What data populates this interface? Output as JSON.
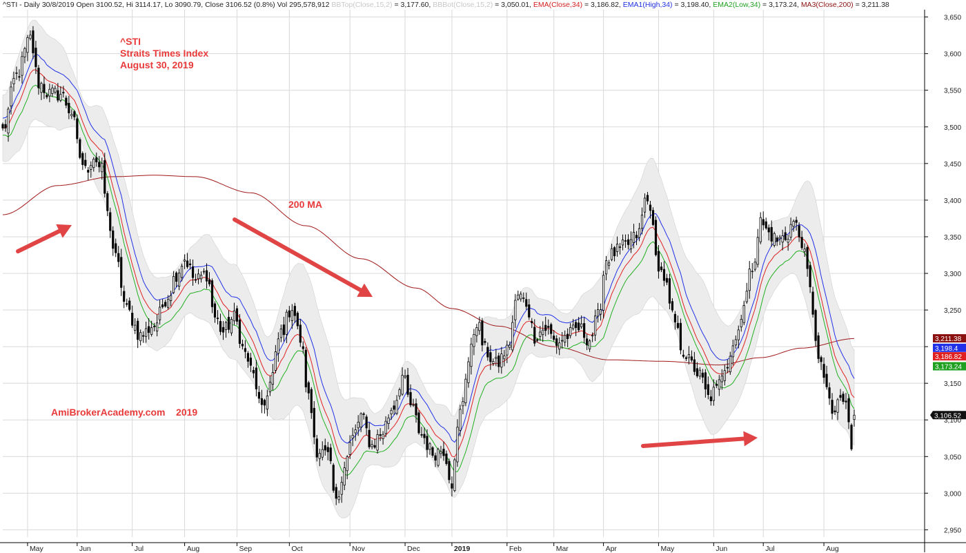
{
  "header": {
    "symbol_line": "^STI - Daily 30/8/2019 Open 3100.52, Hi 3114.17, Lo 3090.79, Close 3106.52 (0.8%) Vol 295,578,912 ",
    "bbtop_label": "BBTop(Close,15,2)",
    "bbtop_value": " = 3,177.60, ",
    "bbbot_label": "BBBot(Close,15,2)",
    "bbbot_value": " = 3,050.01, ",
    "ema_label": "EMA(Close,34)",
    "ema_value": " = 3,186.82, ",
    "ema1_label": "EMA1(High,34)",
    "ema1_value": " = 3,198.40, ",
    "ema2_label": "EMA2(Low,34)",
    "ema2_value": " = 3,173.24, ",
    "ma3_label": "MA3(Close,200)",
    "ma3_value": " = 3,211.38"
  },
  "annotations": {
    "title_line1": "^STI",
    "title_line2": "Straits Times Index",
    "title_line3": "August 30, 2019",
    "ma_label": "200 MA",
    "watermark": "AmiBrokerAcademy.com    2019"
  },
  "colors": {
    "candle": "#000000",
    "band_fill": "#ececec",
    "ema_close": "#e02020",
    "ema_high": "#2030e8",
    "ema_low": "#20b020",
    "ma200": "#a01818",
    "arrow": "#e04444",
    "grid": "#d8d8d8"
  },
  "chart_data": {
    "type": "candlestick",
    "ylim": [
      2940,
      3660
    ],
    "y_ticks": [
      "3,650",
      "3,600",
      "3,550",
      "3,500",
      "3,450",
      "3,400",
      "3,350",
      "3,300",
      "3,250",
      "3,200",
      "3,150",
      "3,100",
      "3,050",
      "3,000",
      "2,950"
    ],
    "y_tick_values": [
      3650,
      3600,
      3550,
      3500,
      3450,
      3400,
      3350,
      3300,
      3250,
      3200,
      3150,
      3100,
      3050,
      3000,
      2950
    ],
    "x_months": [
      {
        "label": "May",
        "index": 9
      },
      {
        "label": "Jun",
        "index": 27
      },
      {
        "label": "Jul",
        "index": 47
      },
      {
        "label": "Aug",
        "index": 66
      },
      {
        "label": "Sep",
        "index": 85
      },
      {
        "label": "Oct",
        "index": 104
      },
      {
        "label": "Nov",
        "index": 126
      },
      {
        "label": "Dec",
        "index": 146
      },
      {
        "label": "2019",
        "index": 163
      },
      {
        "label": "Feb",
        "index": 183
      },
      {
        "label": "Mar",
        "index": 200
      },
      {
        "label": "Apr",
        "index": 218
      },
      {
        "label": "May",
        "index": 238
      },
      {
        "label": "Jun",
        "index": 258
      },
      {
        "label": "Jul",
        "index": 276
      },
      {
        "label": "Aug",
        "index": 298
      }
    ],
    "n_bars": 310,
    "close_anchors": [
      [
        0,
        3495
      ],
      [
        5,
        3570
      ],
      [
        10,
        3620
      ],
      [
        13,
        3560
      ],
      [
        17,
        3545
      ],
      [
        21,
        3545
      ],
      [
        25,
        3520
      ],
      [
        28,
        3460
      ],
      [
        30,
        3440
      ],
      [
        33,
        3460
      ],
      [
        36,
        3440
      ],
      [
        38,
        3380
      ],
      [
        41,
        3320
      ],
      [
        45,
        3250
      ],
      [
        50,
        3215
      ],
      [
        55,
        3230
      ],
      [
        60,
        3270
      ],
      [
        63,
        3300
      ],
      [
        66,
        3320
      ],
      [
        70,
        3290
      ],
      [
        74,
        3300
      ],
      [
        77,
        3240
      ],
      [
        80,
        3220
      ],
      [
        84,
        3240
      ],
      [
        88,
        3190
      ],
      [
        91,
        3160
      ],
      [
        94,
        3110
      ],
      [
        97,
        3150
      ],
      [
        101,
        3220
      ],
      [
        105,
        3255
      ],
      [
        108,
        3210
      ],
      [
        111,
        3130
      ],
      [
        114,
        3060
      ],
      [
        118,
        3050
      ],
      [
        121,
        2985
      ],
      [
        124,
        3040
      ],
      [
        127,
        3075
      ],
      [
        130,
        3105
      ],
      [
        134,
        3065
      ],
      [
        137,
        3080
      ],
      [
        142,
        3120
      ],
      [
        145,
        3160
      ],
      [
        148,
        3120
      ],
      [
        152,
        3080
      ],
      [
        156,
        3055
      ],
      [
        160,
        3060
      ],
      [
        163,
        3015
      ],
      [
        166,
        3110
      ],
      [
        169,
        3180
      ],
      [
        172,
        3235
      ],
      [
        175,
        3195
      ],
      [
        179,
        3175
      ],
      [
        183,
        3195
      ],
      [
        187,
        3270
      ],
      [
        190,
        3260
      ],
      [
        193,
        3215
      ],
      [
        197,
        3225
      ],
      [
        201,
        3205
      ],
      [
        205,
        3215
      ],
      [
        209,
        3225
      ],
      [
        213,
        3210
      ],
      [
        216,
        3240
      ],
      [
        219,
        3320
      ],
      [
        223,
        3330
      ],
      [
        227,
        3340
      ],
      [
        231,
        3355
      ],
      [
        233,
        3400
      ],
      [
        235,
        3395
      ],
      [
        237,
        3320
      ],
      [
        240,
        3295
      ],
      [
        243,
        3240
      ],
      [
        247,
        3195
      ],
      [
        250,
        3175
      ],
      [
        253,
        3160
      ],
      [
        256,
        3130
      ],
      [
        259,
        3140
      ],
      [
        262,
        3175
      ],
      [
        266,
        3210
      ],
      [
        269,
        3260
      ],
      [
        272,
        3310
      ],
      [
        275,
        3370
      ],
      [
        278,
        3355
      ],
      [
        281,
        3345
      ],
      [
        284,
        3350
      ],
      [
        287,
        3370
      ],
      [
        290,
        3345
      ],
      [
        292,
        3300
      ],
      [
        294,
        3250
      ],
      [
        296,
        3180
      ],
      [
        298,
        3160
      ],
      [
        301,
        3105
      ],
      [
        304,
        3130
      ],
      [
        306,
        3120
      ],
      [
        308,
        3065
      ],
      [
        309,
        3107
      ]
    ],
    "band_half_width_anchors": [
      [
        0,
        45
      ],
      [
        8,
        70
      ],
      [
        20,
        60
      ],
      [
        28,
        30
      ],
      [
        36,
        60
      ],
      [
        45,
        75
      ],
      [
        55,
        50
      ],
      [
        65,
        40
      ],
      [
        75,
        60
      ],
      [
        85,
        65
      ],
      [
        95,
        50
      ],
      [
        105,
        95
      ],
      [
        115,
        110
      ],
      [
        125,
        80
      ],
      [
        135,
        35
      ],
      [
        145,
        60
      ],
      [
        155,
        40
      ],
      [
        163,
        55
      ],
      [
        172,
        70
      ],
      [
        185,
        55
      ],
      [
        195,
        40
      ],
      [
        205,
        30
      ],
      [
        215,
        65
      ],
      [
        225,
        75
      ],
      [
        235,
        95
      ],
      [
        245,
        70
      ],
      [
        255,
        95
      ],
      [
        265,
        60
      ],
      [
        275,
        55
      ],
      [
        285,
        40
      ],
      [
        295,
        100
      ],
      [
        302,
        80
      ],
      [
        309,
        65
      ]
    ],
    "ma200_anchors": [
      [
        0,
        3380
      ],
      [
        20,
        3420
      ],
      [
        40,
        3432
      ],
      [
        55,
        3434
      ],
      [
        70,
        3432
      ],
      [
        90,
        3410
      ],
      [
        110,
        3365
      ],
      [
        130,
        3320
      ],
      [
        150,
        3280
      ],
      [
        163,
        3252
      ],
      [
        180,
        3228
      ],
      [
        200,
        3200
      ],
      [
        220,
        3182
      ],
      [
        240,
        3180
      ],
      [
        260,
        3175
      ],
      [
        275,
        3185
      ],
      [
        290,
        3198
      ],
      [
        309,
        3211
      ]
    ],
    "last_close_label": "3,106.52",
    "last_values": [
      {
        "label": "3,211.38",
        "color": "#8b1010"
      },
      {
        "label": "3,198.4",
        "color": "#2030e8"
      },
      {
        "label": "3,186.82",
        "color": "#e02020"
      },
      {
        "label": "3,173.24",
        "color": "#20a020"
      }
    ]
  }
}
